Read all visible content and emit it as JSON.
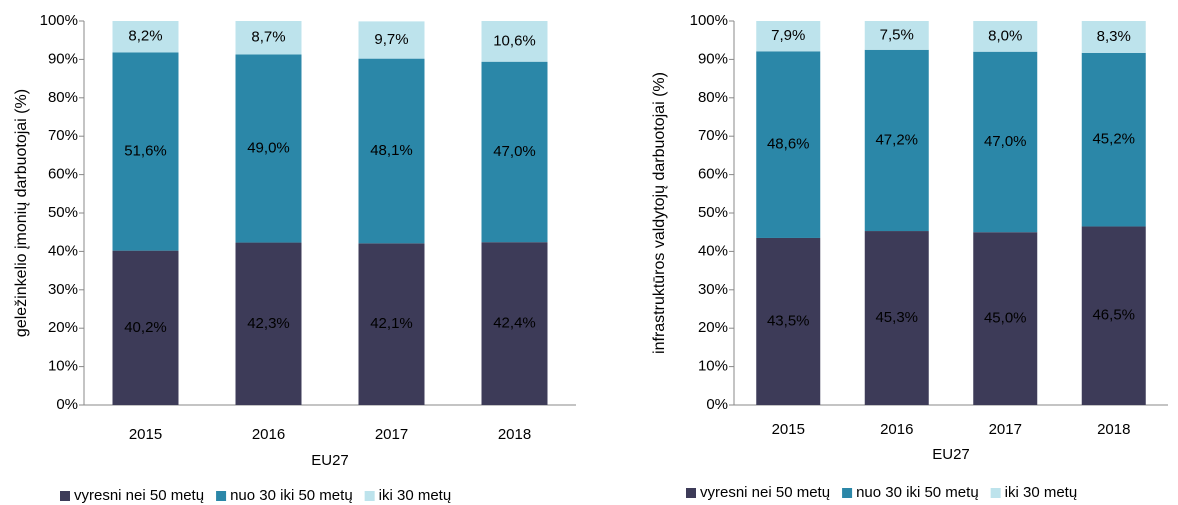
{
  "chart_data": [
    {
      "type": "stacked_bar",
      "y_label": "geležinkelio įmonių darbuotojai (%)",
      "x_label": "EU27",
      "categories": [
        "2015",
        "2016",
        "2017",
        "2018"
      ],
      "series": [
        {
          "name": "vyresni nei 50 metų",
          "color": "#3d3b58",
          "values": [
            40.2,
            42.3,
            42.1,
            42.4
          ],
          "value_labels": [
            "40,2%",
            "42,3%",
            "42,1%",
            "42,4%"
          ]
        },
        {
          "name": "nuo 30 iki 50 metų",
          "color": "#2b87a8",
          "values": [
            51.6,
            49.0,
            48.1,
            47.0
          ],
          "value_labels": [
            "51,6%",
            "49,0%",
            "48,1%",
            "47,0%"
          ]
        },
        {
          "name": "iki 30 metų",
          "color": "#bde3ec",
          "values": [
            8.2,
            8.7,
            9.7,
            10.6
          ],
          "value_labels": [
            "8,2%",
            "8,7%",
            "9,7%",
            "10,6%"
          ]
        }
      ],
      "ylim": [
        0,
        100
      ],
      "yticks": [
        {
          "value": 0,
          "label": "0%"
        },
        {
          "value": 10,
          "label": "10%"
        },
        {
          "value": 20,
          "label": "20%"
        },
        {
          "value": 30,
          "label": "30%"
        },
        {
          "value": 40,
          "label": "40%"
        },
        {
          "value": 50,
          "label": "50%"
        },
        {
          "value": 60,
          "label": "60%"
        },
        {
          "value": 70,
          "label": "70%"
        },
        {
          "value": 80,
          "label": "80%"
        },
        {
          "value": 90,
          "label": "90%"
        },
        {
          "value": 100,
          "label": "100%"
        }
      ],
      "grid": false,
      "legend": "bottom"
    },
    {
      "type": "stacked_bar",
      "y_label": "infrastruktūros valdytojų darbuotojai (%)",
      "x_label": "EU27",
      "categories": [
        "2015",
        "2016",
        "2017",
        "2018"
      ],
      "series": [
        {
          "name": "vyresni nei 50 metų",
          "color": "#3d3b58",
          "values": [
            43.5,
            45.3,
            45.0,
            46.5
          ],
          "value_labels": [
            "43,5%",
            "45,3%",
            "45,0%",
            "46,5%"
          ]
        },
        {
          "name": "nuo 30 iki 50 metų",
          "color": "#2b87a8",
          "values": [
            48.6,
            47.2,
            47.0,
            45.2
          ],
          "value_labels": [
            "48,6%",
            "47,2%",
            "47,0%",
            "45,2%"
          ]
        },
        {
          "name": "iki 30 metų",
          "color": "#bde3ec",
          "values": [
            7.9,
            7.5,
            8.0,
            8.3
          ],
          "value_labels": [
            "7,9%",
            "7,5%",
            "8,0%",
            "8,3%"
          ]
        }
      ],
      "ylim": [
        0,
        100
      ],
      "yticks": [
        {
          "value": 0,
          "label": "0%"
        },
        {
          "value": 10,
          "label": "10%"
        },
        {
          "value": 20,
          "label": "20%"
        },
        {
          "value": 30,
          "label": "30%"
        },
        {
          "value": 40,
          "label": "40%"
        },
        {
          "value": 50,
          "label": "50%"
        },
        {
          "value": 60,
          "label": "60%"
        },
        {
          "value": 70,
          "label": "70%"
        },
        {
          "value": 80,
          "label": "80%"
        },
        {
          "value": 90,
          "label": "90%"
        },
        {
          "value": 100,
          "label": "100%"
        }
      ],
      "grid": false,
      "legend": "bottom"
    }
  ]
}
